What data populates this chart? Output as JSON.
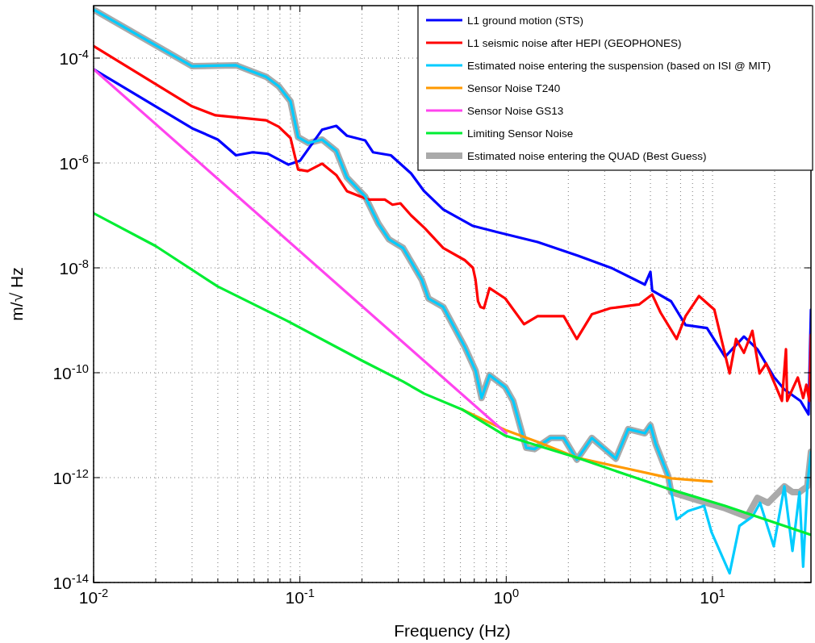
{
  "chart_data": {
    "type": "line",
    "xlabel": "Frequency (Hz)",
    "ylabel": "m/√ Hz",
    "log": "xy",
    "grid": true,
    "legend": "top right",
    "line_style": "solid",
    "marker": "none",
    "xlim": [
      0.01,
      30
    ],
    "ylim": [
      1e-14,
      0.001
    ],
    "xticks": [
      {
        "value": 0.01,
        "label": "10$^{-2}$"
      },
      {
        "value": 0.02,
        "label": null
      },
      {
        "value": 0.03,
        "label": null
      },
      {
        "value": 0.04,
        "label": null
      },
      {
        "value": 0.05,
        "label": null
      },
      {
        "value": 0.06,
        "label": null
      },
      {
        "value": 0.07,
        "label": null
      },
      {
        "value": 0.08,
        "label": null
      },
      {
        "value": 0.09,
        "label": null
      },
      {
        "value": 0.1,
        "label": "10$^{-1}$"
      },
      {
        "value": 0.2,
        "label": null
      },
      {
        "value": 0.3,
        "label": null
      },
      {
        "value": 0.4,
        "label": null
      },
      {
        "value": 0.5,
        "label": null
      },
      {
        "value": 0.6,
        "label": null
      },
      {
        "value": 0.7,
        "label": null
      },
      {
        "value": 0.8,
        "label": null
      },
      {
        "value": 0.9,
        "label": null
      },
      {
        "value": 1,
        "label": "10$^{0}$"
      },
      {
        "value": 2,
        "label": null
      },
      {
        "value": 3,
        "label": null
      },
      {
        "value": 4,
        "label": null
      },
      {
        "value": 5,
        "label": null
      },
      {
        "value": 6,
        "label": null
      },
      {
        "value": 7,
        "label": null
      },
      {
        "value": 8,
        "label": null
      },
      {
        "value": 9,
        "label": null
      },
      {
        "value": 10,
        "label": "10$^{1}$"
      },
      {
        "value": 20,
        "label": null
      }
    ],
    "yticks": [
      {
        "value": 1e-14,
        "label": "10$^{-14}$"
      },
      {
        "value": 1e-12,
        "label": "10$^{-12}$"
      },
      {
        "value": 1e-10,
        "label": "10$^{-10}$"
      },
      {
        "value": 1e-08,
        "label": "10$^{-8}$"
      },
      {
        "value": 1e-06,
        "label": "10$^{-6}$"
      },
      {
        "value": 0.0001,
        "label": "10$^{-4}$"
      }
    ],
    "series": [
      {
        "name": "L1 ground motion (STS)",
        "color": "#0000ff",
        "x": [
          0.01,
          0.03,
          0.04,
          0.049,
          0.059,
          0.07,
          0.088,
          0.1,
          0.128,
          0.15,
          0.169,
          0.207,
          0.226,
          0.276,
          0.346,
          0.4,
          0.495,
          0.69,
          0.906,
          1.42,
          2.23,
          3.28,
          4.7,
          5.0,
          5.1,
          6.3,
          7.4,
          9.4,
          11.5,
          14.2,
          16.5,
          19.8,
          22.3,
          26.7,
          29.2,
          30
        ],
        "values": [
          6.1e-05,
          4.6e-06,
          2.8e-06,
          1.4e-06,
          1.6e-06,
          1.5e-06,
          9.3e-07,
          1.1e-06,
          4.3e-06,
          5.1e-06,
          3.3e-06,
          2.7e-06,
          1.6e-06,
          1.4e-06,
          6.3e-07,
          2.9e-07,
          1.3e-07,
          6.3e-08,
          4.8e-08,
          3.1e-08,
          1.7e-08,
          9.7e-09,
          4.8e-09,
          8.4e-09,
          3.7e-09,
          2.3e-09,
          8.1e-10,
          7.1e-10,
          2e-10,
          4.9e-10,
          2.8e-10,
          8.4e-11,
          4.8e-11,
          2.9e-11,
          1.6e-11,
          1.6e-09
        ]
      },
      {
        "name": "L1 seismic noise after HEPI (GEOPHONES)",
        "color": "#ff0000",
        "x": [
          0.01,
          0.03,
          0.039,
          0.0686,
          0.079,
          0.09,
          0.098,
          0.109,
          0.128,
          0.15,
          0.169,
          0.215,
          0.258,
          0.281,
          0.307,
          0.346,
          0.403,
          0.495,
          0.63,
          0.69,
          0.71,
          0.73,
          0.75,
          0.78,
          0.83,
          0.99,
          1.22,
          1.42,
          1.9,
          2.2,
          2.6,
          3.2,
          4.4,
          5.1,
          5.6,
          6.7,
          7.4,
          8.6,
          10.2,
          12.1,
          13.0,
          14.2,
          15.6,
          16.9,
          18.2,
          21.7,
          22.7,
          23,
          25.9,
          27.5,
          28.5,
          29.5,
          30
        ],
        "values": [
          0.00017,
          1.2e-05,
          8.1e-06,
          6.5e-06,
          4.9e-06,
          3e-06,
          7.5e-07,
          7e-07,
          9.7e-07,
          5.9e-07,
          2.9e-07,
          2e-07,
          2e-07,
          1.6e-07,
          1.7e-07,
          1e-07,
          5.7e-08,
          2.4e-08,
          1.4e-08,
          1e-08,
          5.9e-09,
          2.3e-09,
          1.8e-09,
          1.7e-09,
          4.1e-09,
          2.6e-09,
          8.4e-10,
          1.2e-09,
          1.2e-09,
          4.4e-10,
          1.3e-09,
          1.7e-09,
          2e-09,
          3.1e-09,
          1.4e-09,
          4.4e-10,
          1.2e-09,
          2.9e-09,
          1.6e-09,
          9.7e-11,
          4.4e-10,
          2.4e-10,
          6.3e-10,
          9.7e-11,
          1.5e-10,
          2.9e-11,
          2.8e-10,
          2.9e-11,
          8.1e-11,
          3.3e-11,
          5.9e-11,
          2.9e-11,
          5.3e-10
        ]
      },
      {
        "name": "Estimated noise entering the suspension (based on ISI @ MIT)",
        "color": "#00ccff",
        "x": [
          0.01,
          0.03,
          0.049,
          0.0686,
          0.079,
          0.09,
          0.098,
          0.11,
          0.128,
          0.15,
          0.169,
          0.207,
          0.24,
          0.27,
          0.316,
          0.39,
          0.42,
          0.495,
          0.63,
          0.71,
          0.76,
          0.83,
          0.99,
          1.08,
          1.25,
          1.37,
          1.64,
          1.9,
          2.2,
          2.6,
          3.4,
          3.9,
          4.7,
          5.0,
          5.3,
          6.1,
          6.7,
          7.6,
          9.1,
          9.9,
          12.1,
          13.5,
          15.6,
          17.0,
          19.8,
          22.3,
          24.4,
          26.4,
          27.5,
          28.8,
          30
        ],
        "values": [
          0.00084,
          7e-05,
          7.3e-05,
          4.4e-05,
          2.9e-05,
          1.5e-05,
          3.1e-06,
          2.4e-06,
          2.8e-06,
          1.7e-06,
          5.3e-07,
          2.3e-07,
          7e-08,
          3.5e-08,
          2.4e-08,
          5.9e-09,
          2.6e-09,
          1.8e-09,
          3.1e-10,
          1.1e-10,
          3.3e-11,
          9e-11,
          5.3e-11,
          2.9e-11,
          3.7e-12,
          3.5e-12,
          5.7e-12,
          5.7e-12,
          2.2e-12,
          5.7e-12,
          2.3e-12,
          8.4e-12,
          7e-12,
          1e-11,
          4.4e-12,
          1.07e-12,
          1.6e-13,
          2.3e-13,
          2.9e-13,
          9e-14,
          1.5e-14,
          1.2e-13,
          1.8e-13,
          3.3e-13,
          4.9e-14,
          6.8e-13,
          4e-14,
          5.3e-13,
          2e-14,
          6.8e-13,
          3.1e-12
        ]
      },
      {
        "name": "Sensor Noise T240",
        "color": "#ff9900",
        "x": [
          0.61,
          0.85,
          0.99,
          1.42,
          2.2,
          3.8,
          6.3,
          9.9
        ],
        "values": [
          2e-11,
          1.07e-11,
          8.1e-12,
          4.8e-12,
          2.4e-12,
          1.5e-12,
          9.7e-13,
          8.4e-13
        ]
      },
      {
        "name": "Sensor Noise GS13",
        "color": "#ff44ee",
        "x": [
          0.01,
          1.0
        ],
        "values": [
          6.1e-05,
          7e-12
        ]
      },
      {
        "name": "Limiting Sensor Noise",
        "color": "#00ee33",
        "x": [
          0.01,
          0.02,
          0.04,
          0.087,
          0.2,
          0.316,
          0.4,
          0.61,
          0.99,
          2.2,
          4.0,
          6.3,
          11.5,
          30
        ],
        "values": [
          1.1e-07,
          2.6e-08,
          4.4e-09,
          9.7e-10,
          1.7e-10,
          6.8e-11,
          4e-11,
          2e-11,
          6.3e-12,
          2.4e-12,
          1.07e-12,
          5.9e-13,
          2.9e-13,
          8.1e-14
        ]
      },
      {
        "name": "Estimated noise entering the QUAD (Best Guess)",
        "color": "#aaaaaa",
        "x": [
          0.01,
          0.03,
          0.049,
          0.0686,
          0.079,
          0.09,
          0.098,
          0.11,
          0.128,
          0.15,
          0.169,
          0.207,
          0.24,
          0.27,
          0.316,
          0.39,
          0.42,
          0.495,
          0.63,
          0.71,
          0.76,
          0.83,
          0.99,
          1.08,
          1.25,
          1.37,
          1.64,
          1.9,
          2.2,
          2.6,
          3.4,
          3.9,
          4.7,
          5.0,
          5.3,
          6.1,
          6.3,
          8.5,
          11.5,
          14.7,
          16.5,
          18.6,
          22.3,
          24.4,
          26.4,
          28.8,
          30
        ],
        "values": [
          0.00084,
          7e-05,
          7.3e-05,
          4.4e-05,
          2.9e-05,
          1.5e-05,
          3.1e-06,
          2.4e-06,
          2.8e-06,
          1.7e-06,
          5.3e-07,
          2.3e-07,
          7e-08,
          3.5e-08,
          2.4e-08,
          5.9e-09,
          2.6e-09,
          1.8e-09,
          3.1e-10,
          1.1e-10,
          3.3e-11,
          9e-11,
          5.3e-11,
          2.9e-11,
          3.7e-12,
          3.5e-12,
          5.7e-12,
          5.7e-12,
          2.2e-12,
          5.7e-12,
          2.3e-12,
          8.4e-12,
          7e-12,
          1e-11,
          4.4e-12,
          1.07e-12,
          5.3e-13,
          3.7e-13,
          2.6e-13,
          1.8e-13,
          4.1e-13,
          3.3e-13,
          6.8e-13,
          5.3e-13,
          5.3e-13,
          6.8e-13,
          3.1e-12
        ]
      }
    ]
  }
}
